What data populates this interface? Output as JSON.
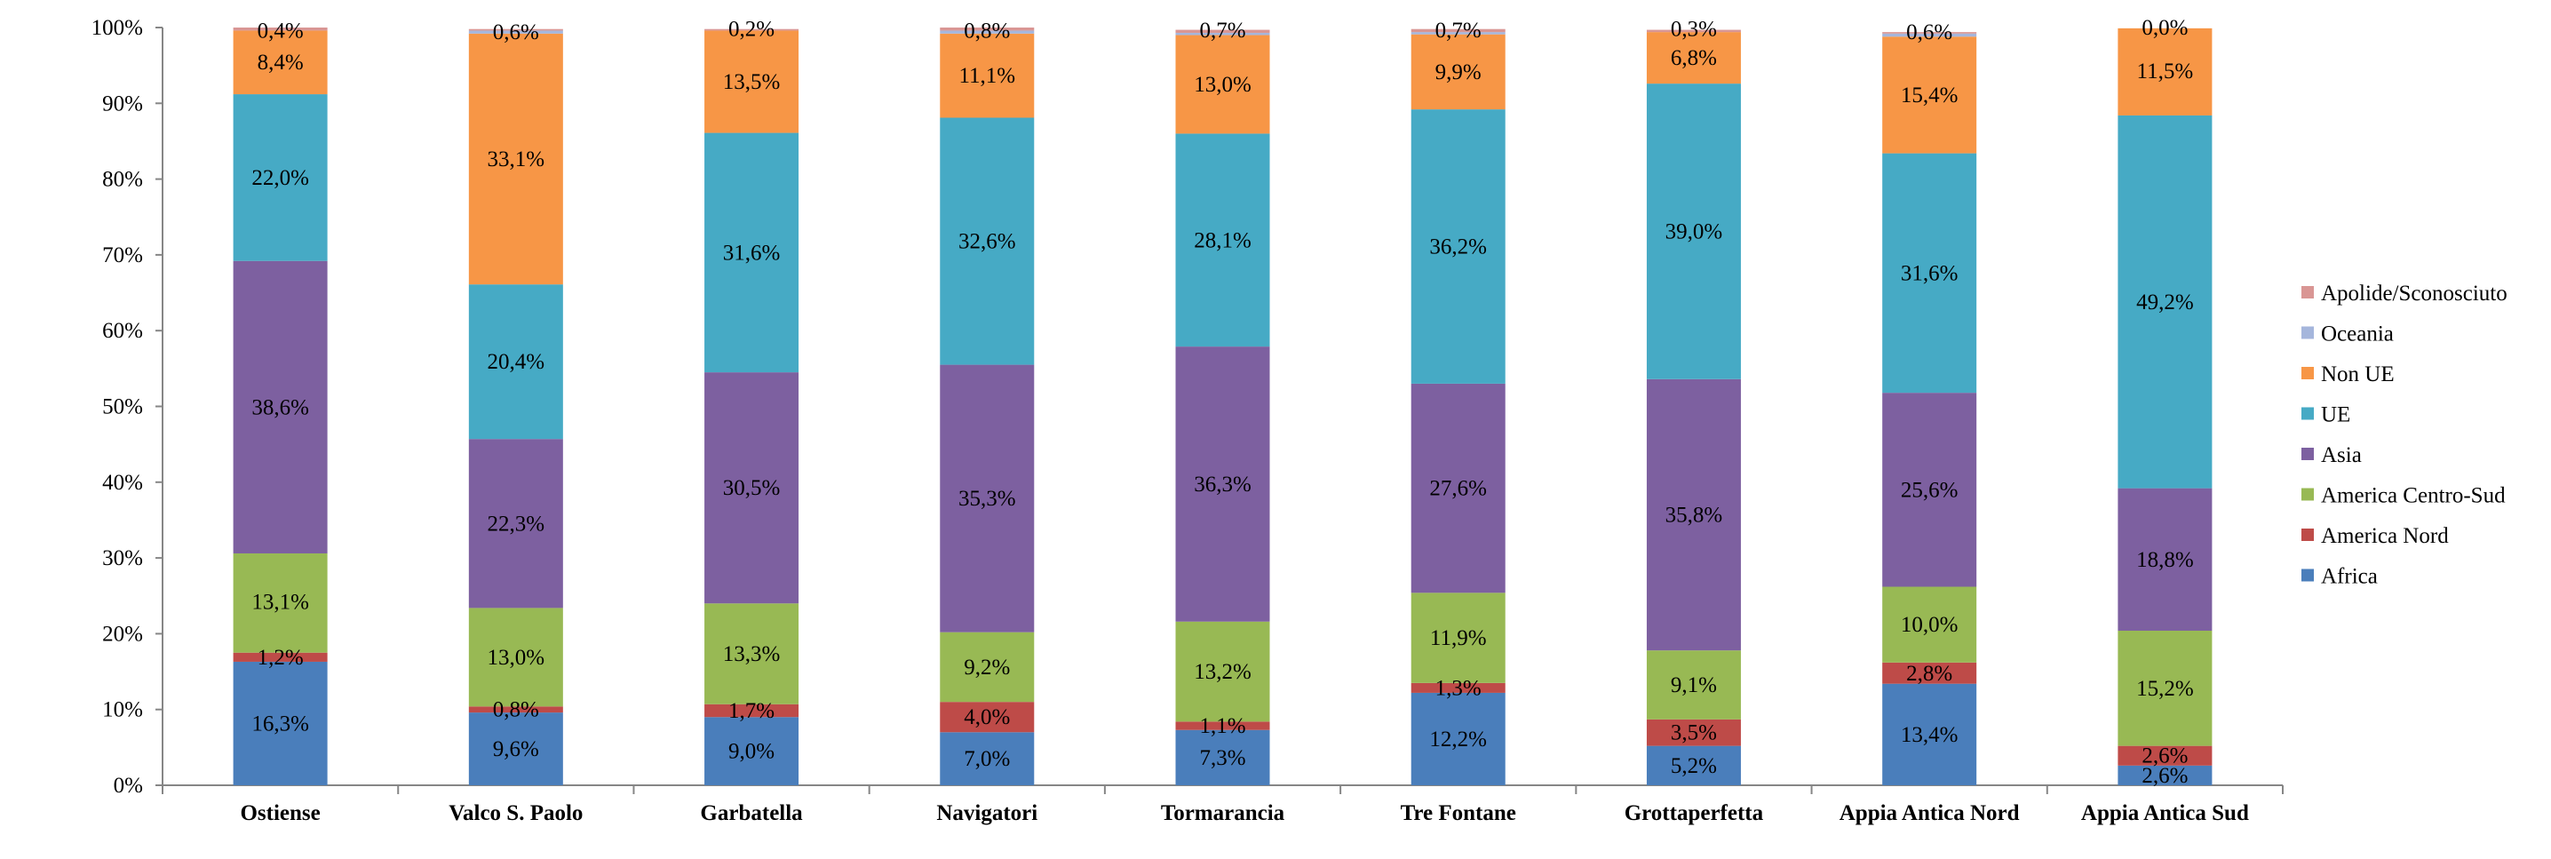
{
  "chart_data": {
    "type": "bar",
    "stacked": true,
    "percent": true,
    "title": "",
    "header_fragment": "",
    "ylim": [
      0,
      100
    ],
    "yticks": [
      "0%",
      "10%",
      "20%",
      "30%",
      "40%",
      "50%",
      "60%",
      "70%",
      "80%",
      "90%",
      "100%"
    ],
    "categories": [
      "Ostiense",
      "Valco S. Paolo",
      "Garbatella",
      "Navigatori",
      "Tormarancia",
      "Tre Fontane",
      "Grottaperfetta",
      "Appia Antica Nord",
      "Appia Antica Sud"
    ],
    "series": [
      {
        "name": "Africa",
        "color": "#4a7ebb",
        "values": [
          16.3,
          9.6,
          9.0,
          7.0,
          7.3,
          12.2,
          5.2,
          13.4,
          2.6
        ]
      },
      {
        "name": "America Nord",
        "color": "#be4b48",
        "values": [
          1.2,
          0.8,
          1.7,
          4.0,
          1.1,
          1.3,
          3.5,
          2.8,
          2.6
        ]
      },
      {
        "name": "America Centro-Sud",
        "color": "#98b954",
        "values": [
          13.1,
          13.0,
          13.3,
          9.2,
          13.2,
          11.9,
          9.1,
          10.0,
          15.2
        ]
      },
      {
        "name": "Asia",
        "color": "#7d60a0",
        "values": [
          38.6,
          22.3,
          30.5,
          35.3,
          36.3,
          27.6,
          35.8,
          25.6,
          18.8
        ]
      },
      {
        "name": "UE",
        "color": "#46aac5",
        "values": [
          22.0,
          20.4,
          31.6,
          32.6,
          28.1,
          36.2,
          39.0,
          31.6,
          49.2
        ]
      },
      {
        "name": "Non UE",
        "color": "#f79646",
        "values": [
          8.4,
          33.1,
          13.5,
          11.1,
          13.0,
          9.9,
          6.8,
          15.4,
          11.5
        ]
      },
      {
        "name": "Oceania",
        "color": "#a5b6dc",
        "values": [
          0.0,
          0.4,
          0.0,
          0.4,
          0.3,
          0.3,
          0.0,
          0.4,
          0.0
        ]
      },
      {
        "name": "Apolide/Sconosciuto",
        "color": "#d99694",
        "values": [
          0.4,
          0.2,
          0.2,
          0.4,
          0.4,
          0.4,
          0.3,
          0.2,
          0.0
        ]
      }
    ],
    "data_labels": [
      {
        "category": "Ostiense",
        "labels": [
          {
            "text": "16,3%",
            "at": 8.15
          },
          {
            "text": "1,2%",
            "at": 16.9
          },
          {
            "text": "13,1%",
            "at": 24.2
          },
          {
            "text": "38,6%",
            "at": 49.9
          },
          {
            "text": "22,0%",
            "at": 80.2
          },
          {
            "text": "8,4%",
            "at": 95.4
          },
          {
            "text": "0,4%",
            "at": 99.6
          }
        ]
      },
      {
        "category": "Valco S. Paolo",
        "labels": [
          {
            "text": "9,6%",
            "at": 4.8
          },
          {
            "text": "0,8%",
            "at": 10.0
          },
          {
            "text": "13,0%",
            "at": 16.9
          },
          {
            "text": "22,3%",
            "at": 34.55
          },
          {
            "text": "20,4%",
            "at": 55.9
          },
          {
            "text": "33,1%",
            "at": 82.65
          },
          {
            "text": "0,6%",
            "at": 99.4
          }
        ]
      },
      {
        "category": "Garbatella",
        "labels": [
          {
            "text": "9,0%",
            "at": 4.5
          },
          {
            "text": "1,7%",
            "at": 9.85
          },
          {
            "text": "13,3%",
            "at": 17.35
          },
          {
            "text": "30,5%",
            "at": 39.25
          },
          {
            "text": "31,6%",
            "at": 70.3
          },
          {
            "text": "13,5%",
            "at": 92.85
          },
          {
            "text": "0,2%",
            "at": 99.8
          }
        ]
      },
      {
        "category": "Navigatori",
        "labels": [
          {
            "text": "7,0%",
            "at": 3.5
          },
          {
            "text": "4,0%",
            "at": 9.0
          },
          {
            "text": "9,2%",
            "at": 15.6
          },
          {
            "text": "35,3%",
            "at": 37.85
          },
          {
            "text": "32,6%",
            "at": 71.8
          },
          {
            "text": "11,1%",
            "at": 93.65
          },
          {
            "text": "0,8%",
            "at": 99.6
          }
        ]
      },
      {
        "category": "Tormarancia",
        "labels": [
          {
            "text": "7,3%",
            "at": 3.65
          },
          {
            "text": "1,1%",
            "at": 7.85
          },
          {
            "text": "13,2%",
            "at": 15.0
          },
          {
            "text": "36,3%",
            "at": 39.75
          },
          {
            "text": "28,1%",
            "at": 71.95
          },
          {
            "text": "13,0%",
            "at": 92.5
          },
          {
            "text": "0,7%",
            "at": 99.65
          }
        ]
      },
      {
        "category": "Tre Fontane",
        "labels": [
          {
            "text": "12,2%",
            "at": 6.1
          },
          {
            "text": "1,3%",
            "at": 12.85
          },
          {
            "text": "11,9%",
            "at": 19.45
          },
          {
            "text": "27,6%",
            "at": 39.2
          },
          {
            "text": "36,2%",
            "at": 71.1
          },
          {
            "text": "9,9%",
            "at": 94.15
          },
          {
            "text": "0,7%",
            "at": 99.65
          }
        ]
      },
      {
        "category": "Grottaperfetta",
        "labels": [
          {
            "text": "5,2%",
            "at": 2.6
          },
          {
            "text": "3,5%",
            "at": 6.95
          },
          {
            "text": "9,1%",
            "at": 13.25
          },
          {
            "text": "35,8%",
            "at": 35.7
          },
          {
            "text": "39,0%",
            "at": 73.1
          },
          {
            "text": "6,8%",
            "at": 96.0
          },
          {
            "text": "0,3%",
            "at": 99.85
          }
        ]
      },
      {
        "category": "Appia Antica Nord",
        "labels": [
          {
            "text": "13,4%",
            "at": 6.7
          },
          {
            "text": "2,8%",
            "at": 14.8
          },
          {
            "text": "10,0%",
            "at": 21.2
          },
          {
            "text": "25,6%",
            "at": 39.0
          },
          {
            "text": "31,6%",
            "at": 67.6
          },
          {
            "text": "15,4%",
            "at": 91.1
          },
          {
            "text": "0,6%",
            "at": 99.4
          }
        ]
      },
      {
        "category": "Appia Antica Sud",
        "labels": [
          {
            "text": "2,6%",
            "at": 1.3
          },
          {
            "text": "2,6%",
            "at": 3.9
          },
          {
            "text": "15,2%",
            "at": 12.8
          },
          {
            "text": "18,8%",
            "at": 29.8
          },
          {
            "text": "49,2%",
            "at": 63.8
          },
          {
            "text": "11,5%",
            "at": 94.25
          },
          {
            "text": "0,0%",
            "at": 100.0
          }
        ]
      }
    ],
    "legend_order": [
      "Apolide/Sconosciuto",
      "Oceania",
      "Non UE",
      "UE",
      "Asia",
      "America Centro-Sud",
      "America Nord",
      "Africa"
    ],
    "legend_position": "right",
    "grid": false
  }
}
